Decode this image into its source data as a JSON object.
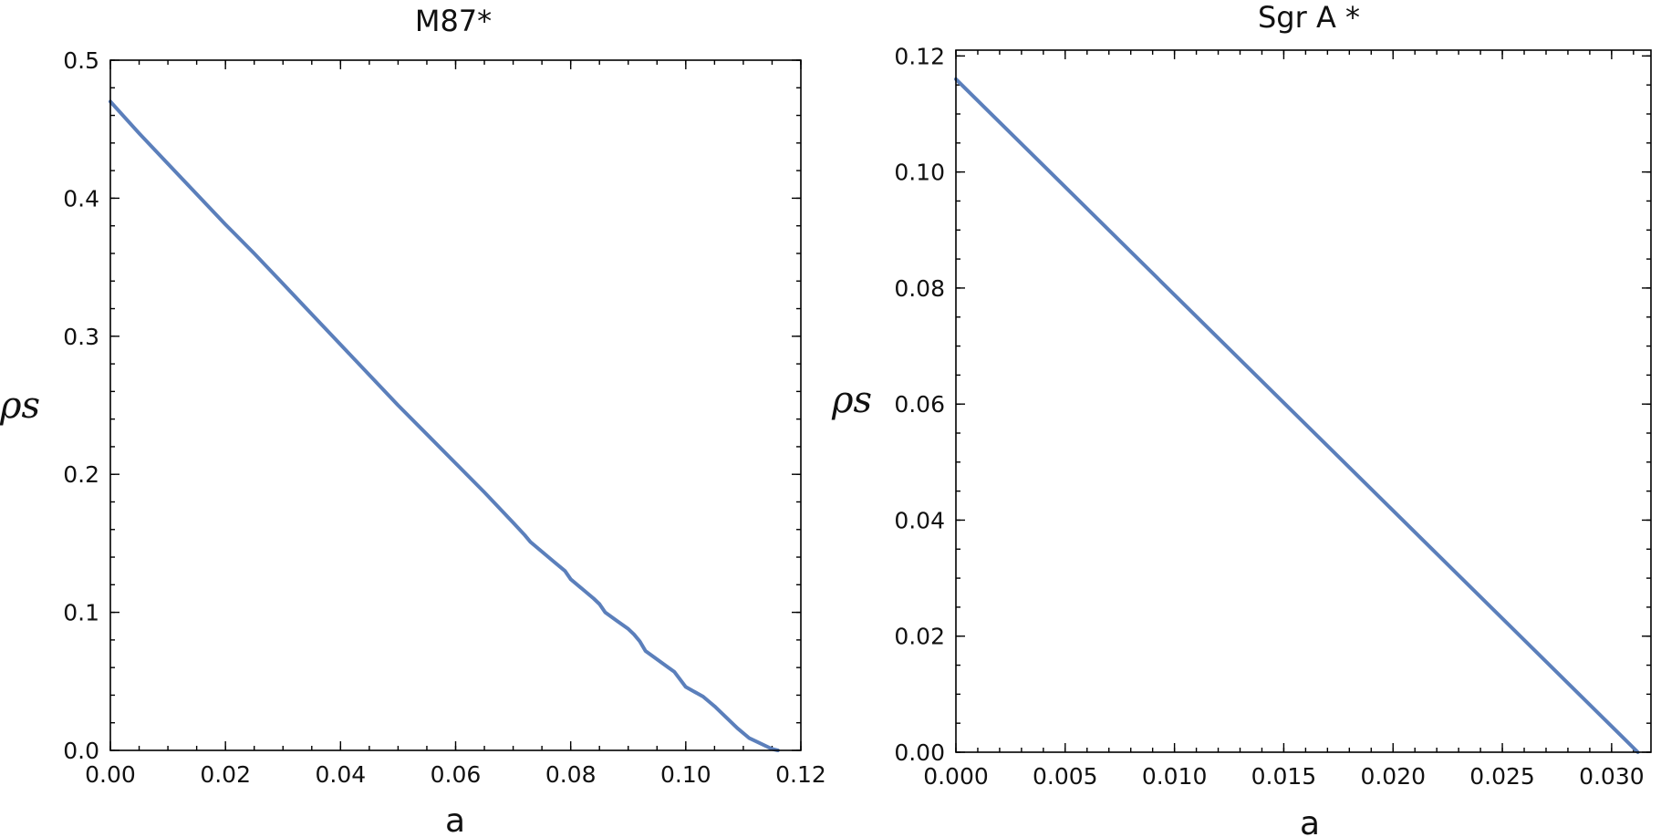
{
  "accent_color": "#5b7fbb",
  "chart_data": [
    {
      "type": "line",
      "title": "M87*",
      "xlabel": "a",
      "ylabel": "ρs",
      "xlim": [
        0,
        0.12
      ],
      "ylim": [
        0,
        0.5
      ],
      "xticks": [
        "0.00",
        "0.02",
        "0.04",
        "0.06",
        "0.08",
        "0.10",
        "0.12"
      ],
      "yticks": [
        "0.0",
        "0.1",
        "0.2",
        "0.3",
        "0.4",
        "0.5"
      ],
      "grid": false,
      "series": [
        {
          "color": "#5b7fbb",
          "x": [
            0,
            0.005,
            0.01,
            0.015,
            0.02,
            0.025,
            0.03,
            0.035,
            0.04,
            0.045,
            0.05,
            0.055,
            0.06,
            0.065,
            0.07,
            0.072,
            0.073,
            0.075,
            0.077,
            0.079,
            0.08,
            0.082,
            0.084,
            0.085,
            0.086,
            0.088,
            0.09,
            0.091,
            0.092,
            0.093,
            0.095,
            0.097,
            0.098,
            0.1,
            0.103,
            0.105,
            0.107,
            0.109,
            0.111,
            0.113,
            0.115,
            0.116
          ],
          "y": [
            0.47,
            0.447,
            0.425,
            0.403,
            0.381,
            0.36,
            0.338,
            0.316,
            0.294,
            0.272,
            0.25,
            0.229,
            0.208,
            0.187,
            0.165,
            0.156,
            0.151,
            0.144,
            0.137,
            0.13,
            0.124,
            0.117,
            0.11,
            0.106,
            0.1,
            0.094,
            0.088,
            0.084,
            0.079,
            0.072,
            0.066,
            0.06,
            0.057,
            0.046,
            0.039,
            0.032,
            0.024,
            0.016,
            0.009,
            0.005,
            0.001,
            0.0
          ]
        }
      ]
    },
    {
      "type": "line",
      "title": "Sgr A *",
      "xlabel": "a",
      "ylabel": "ρs",
      "xlim": [
        0,
        0.0318
      ],
      "ylim": [
        0,
        0.121
      ],
      "xticks": [
        "0.000",
        "0.005",
        "0.010",
        "0.015",
        "0.020",
        "0.025",
        "0.030"
      ],
      "yticks": [
        "0.00",
        "0.02",
        "0.04",
        "0.06",
        "0.08",
        "0.10",
        "0.12"
      ],
      "grid": false,
      "series": [
        {
          "color": "#5b7fbb",
          "x": [
            0,
            0.0312
          ],
          "y": [
            0.116,
            0.0
          ]
        }
      ]
    }
  ]
}
